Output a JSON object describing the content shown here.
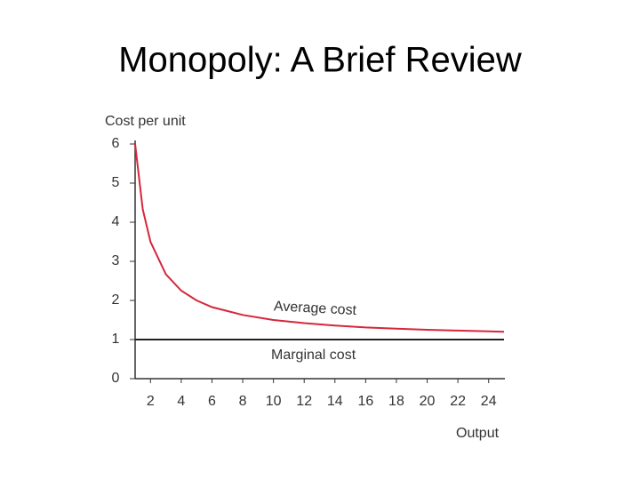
{
  "chart_data": {
    "type": "line",
    "title": "Monopoly: A Brief Review",
    "y_label": "Cost per unit",
    "x_label": "Output",
    "xlim": [
      1,
      25
    ],
    "ylim": [
      0,
      6
    ],
    "xticks": [
      2,
      4,
      6,
      8,
      10,
      12,
      14,
      16,
      18,
      20,
      22,
      24
    ],
    "yticks": [
      0,
      1,
      2,
      3,
      4,
      5,
      6
    ],
    "series": [
      {
        "name": "Average cost",
        "color": "#d6263b",
        "x": [
          1,
          1.5,
          2,
          3,
          4,
          5,
          6,
          8,
          10,
          12,
          14,
          16,
          18,
          20,
          22,
          24,
          25
        ],
        "values": [
          6,
          4.33,
          3.5,
          2.67,
          2.25,
          2,
          1.83,
          1.63,
          1.5,
          1.42,
          1.36,
          1.31,
          1.28,
          1.25,
          1.23,
          1.21,
          1.2
        ]
      },
      {
        "name": "Marginal cost",
        "color": "#222222",
        "x": [
          1,
          25
        ],
        "values": [
          1,
          1
        ]
      }
    ]
  }
}
